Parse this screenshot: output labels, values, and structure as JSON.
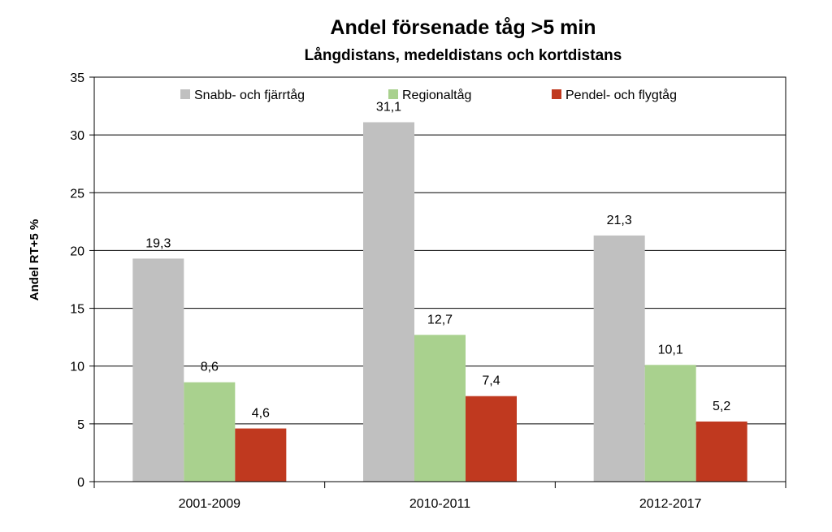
{
  "chart_data": {
    "type": "bar",
    "title": "Andel försenade tåg >5 min",
    "subtitle": "Långdistans, medeldistans och kortdistans",
    "ylabel": "Andel RT+5 %",
    "xlabel": "",
    "ylim": [
      0,
      35
    ],
    "yticks": [
      0,
      5,
      10,
      15,
      20,
      25,
      30,
      35
    ],
    "grid": true,
    "legend_position": "top",
    "categories": [
      "2001-2009",
      "2010-2011",
      "2012-2017"
    ],
    "series": [
      {
        "name": "Snabb- och fjärrtåg",
        "color": "#c0c0c0",
        "values": [
          19.3,
          31.1,
          21.3
        ],
        "labels": [
          "19,3",
          "31,1",
          "21,3"
        ]
      },
      {
        "name": "Regionaltåg",
        "color": "#a9d18e",
        "values": [
          8.6,
          12.7,
          10.1
        ],
        "labels": [
          "8,6",
          "12,7",
          "10,1"
        ]
      },
      {
        "name": "Pendel- och flygtåg",
        "color": "#c0391f",
        "values": [
          4.6,
          7.4,
          5.2
        ],
        "labels": [
          "4,6",
          "7,4",
          "5,2"
        ]
      }
    ]
  }
}
